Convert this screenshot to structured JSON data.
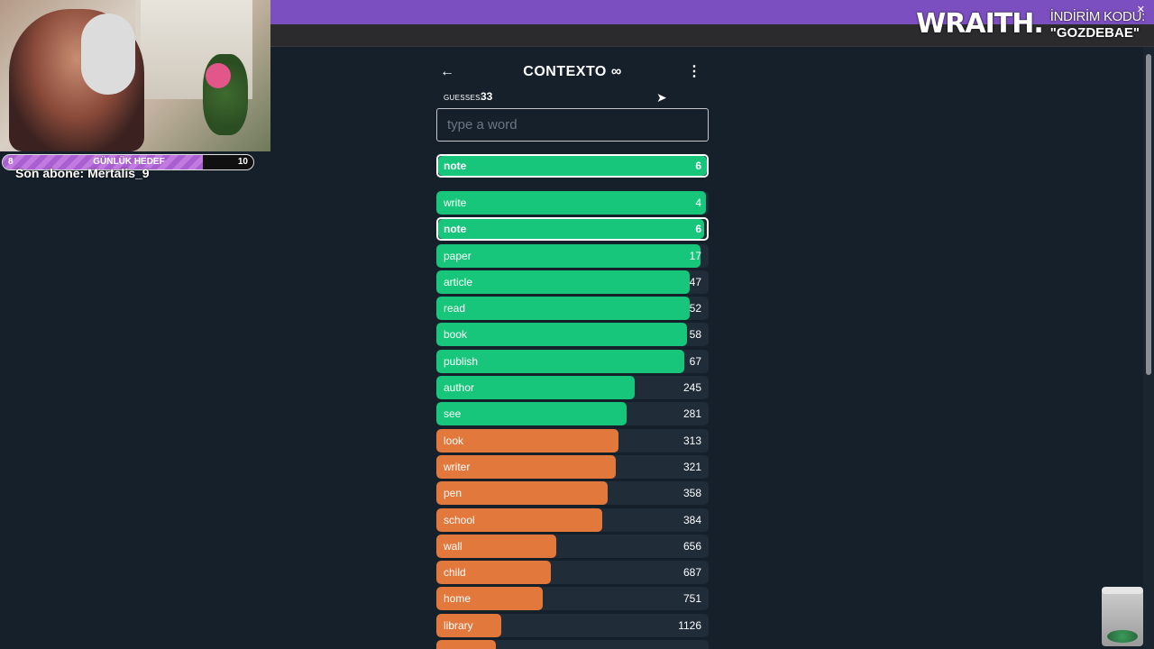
{
  "overlay": {
    "promo_brand": "WRAITH.",
    "promo_label": "İNDİRİM KODU:",
    "promo_code": "\"GOZDEBAE\"",
    "goal": {
      "label": "GÜNLÜK HEDEF",
      "current": "8",
      "target": "10",
      "progress": 0.8
    },
    "last_subscriber": "Son abone: Mertalis_9"
  },
  "game": {
    "title": "CONTEXTO ∞",
    "guesses_label": "GUESSES:",
    "guesses_value": "33",
    "search_placeholder": "type a word",
    "last_guess": {
      "word": "note",
      "rank": "6"
    },
    "guesses": [
      {
        "word": "write",
        "rank": "4",
        "fill": 0.99,
        "color": "#17c67a"
      },
      {
        "word": "note",
        "rank": "6",
        "fill": 0.99,
        "color": "#17c67a",
        "highlight": true
      },
      {
        "word": "paper",
        "rank": "17",
        "fill": 0.97,
        "color": "#17c67a"
      },
      {
        "word": "article",
        "rank": "47",
        "fill": 0.93,
        "color": "#17c67a"
      },
      {
        "word": "read",
        "rank": "52",
        "fill": 0.93,
        "color": "#17c67a"
      },
      {
        "word": "book",
        "rank": "58",
        "fill": 0.92,
        "color": "#17c67a"
      },
      {
        "word": "publish",
        "rank": "67",
        "fill": 0.91,
        "color": "#17c67a"
      },
      {
        "word": "author",
        "rank": "245",
        "fill": 0.73,
        "color": "#17c67a"
      },
      {
        "word": "see",
        "rank": "281",
        "fill": 0.7,
        "color": "#17c67a"
      },
      {
        "word": "look",
        "rank": "313",
        "fill": 0.67,
        "color": "#e2783b"
      },
      {
        "word": "writer",
        "rank": "321",
        "fill": 0.66,
        "color": "#e2783b"
      },
      {
        "word": "pen",
        "rank": "358",
        "fill": 0.63,
        "color": "#e2783b"
      },
      {
        "word": "school",
        "rank": "384",
        "fill": 0.61,
        "color": "#e2783b"
      },
      {
        "word": "wall",
        "rank": "656",
        "fill": 0.44,
        "color": "#e2783b"
      },
      {
        "word": "child",
        "rank": "687",
        "fill": 0.42,
        "color": "#e2783b"
      },
      {
        "word": "home",
        "rank": "751",
        "fill": 0.39,
        "color": "#e2783b"
      },
      {
        "word": "library",
        "rank": "1126",
        "fill": 0.24,
        "color": "#e2783b"
      },
      {
        "word": "",
        "rank": "",
        "fill": 0.22,
        "color": "#e2783b"
      }
    ]
  }
}
